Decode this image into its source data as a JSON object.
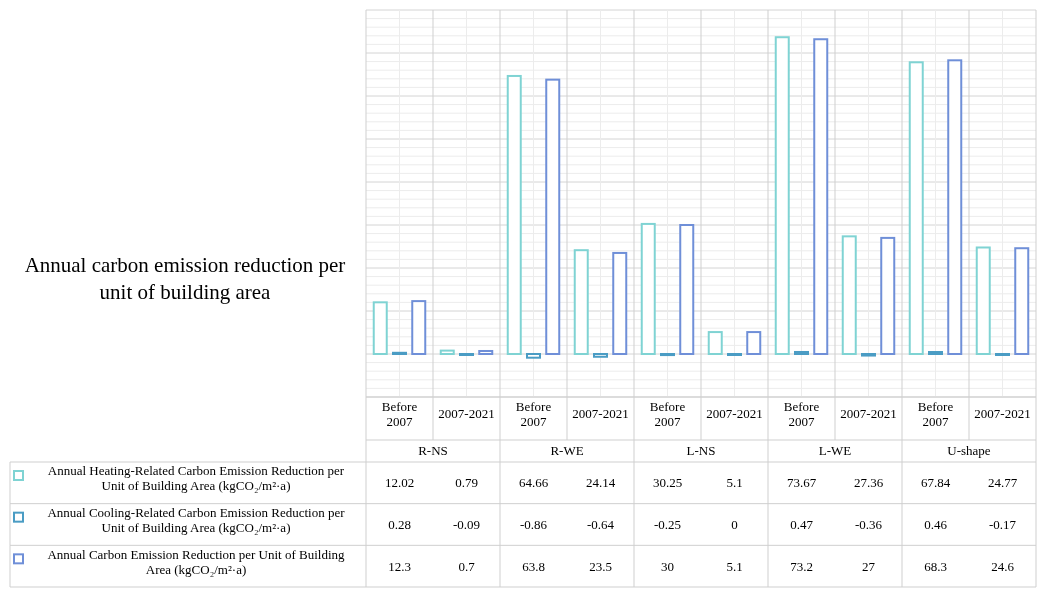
{
  "chart_data": {
    "type": "bar",
    "title": "Annual carbon emission reduction per unit of building area",
    "categories": [
      "Before 2007",
      "2007-2021",
      "Before 2007",
      "2007-2021",
      "Before 2007",
      "2007-2021",
      "Before 2007",
      "2007-2021",
      "Before 2007",
      "2007-2021"
    ],
    "annotations": [
      "R-NS",
      "R-WE",
      "L-NS",
      "L-WE",
      "U-shape"
    ],
    "series": [
      {
        "name": "Annual Heating-Related Carbon Emission Reduction per Unit of Building Area (kgCO₂/m²·a)",
        "color": "#7fd3d3",
        "values": [
          12.02,
          0.79,
          64.66,
          24.14,
          30.25,
          5.1,
          73.67,
          27.36,
          67.84,
          24.77
        ]
      },
      {
        "name": "Annual Cooling-Related Carbon Emission Reduction per Unit of Building Area (kgCO₂/m²·a)",
        "color": "#4a9cc4",
        "values": [
          0.28,
          -0.09,
          -0.86,
          -0.64,
          -0.25,
          0,
          0.47,
          -0.36,
          0.46,
          -0.17
        ]
      },
      {
        "name": "Annual Carbon Emission Reduction per Unit of Building Area (kgCO₂/m²·a)",
        "color": "#6f8fd8",
        "values": [
          12.3,
          0.7,
          63.8,
          23.5,
          30,
          5.1,
          73.2,
          27,
          68.3,
          24.6
        ]
      }
    ],
    "ylim": [
      -10,
      80
    ],
    "yticks": [
      {
        "value": -10,
        "label": null
      },
      {
        "value": 0,
        "label": null
      },
      {
        "value": 10,
        "label": null
      },
      {
        "value": 20,
        "label": null
      },
      {
        "value": 30,
        "label": null
      },
      {
        "value": 40,
        "label": null
      },
      {
        "value": 50,
        "label": null
      },
      {
        "value": 60,
        "label": null
      },
      {
        "value": 70,
        "label": null
      },
      {
        "value": 80,
        "label": null
      }
    ],
    "tick_labels": "x",
    "grid": true,
    "legend": "bottom",
    "data_labels": true
  }
}
